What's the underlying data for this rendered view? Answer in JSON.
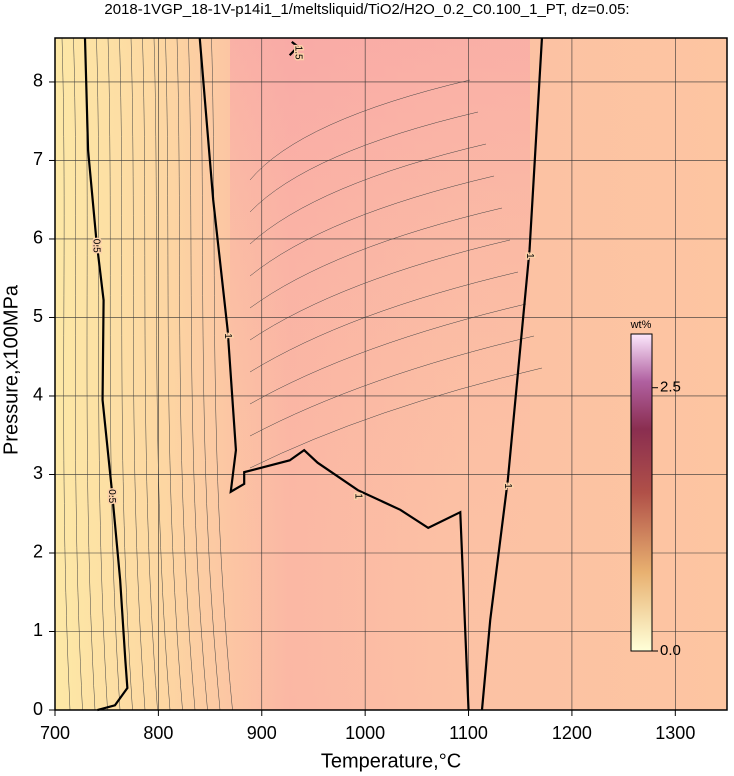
{
  "chart_data": {
    "type": "contour",
    "title": "2018-1VGP_18-1V-p14i1_1/meltsliquid/TiO2/H2O_0.2_C0.100_1_PT, dz=0.05:",
    "xlabel": "Temperature,°C",
    "ylabel": "Pressure,x100MPa",
    "xlim": [
      700,
      1350
    ],
    "ylim": [
      0,
      8.56
    ],
    "xticks": [
      700,
      800,
      900,
      1000,
      1100,
      1200,
      1300
    ],
    "yticks": [
      0,
      1,
      2,
      3,
      4,
      5,
      6,
      7,
      8
    ],
    "grid": true,
    "contours": [
      {
        "level": 0.5,
        "x": [
          729,
          732,
          740,
          747,
          746,
          755,
          763,
          768,
          770,
          758,
          741
        ],
        "y": [
          8.56,
          7.13,
          5.99,
          5.22,
          3.95,
          2.8,
          1.66,
          0.64,
          0.28,
          0.06,
          0
        ]
      },
      {
        "level": 1,
        "x": [
          840,
          853,
          867,
          875,
          870,
          883,
          883,
          927,
          941,
          954,
          993,
          1034,
          1061,
          1092,
          1100
        ],
        "y": [
          8.56,
          6.5,
          4.84,
          3.31,
          2.78,
          2.88,
          3.03,
          3.18,
          3.31,
          3.15,
          2.8,
          2.55,
          2.32,
          2.52,
          0
        ]
      },
      {
        "level": 1,
        "x": [
          1171,
          1159,
          1138,
          1121,
          1113
        ],
        "y": [
          8.56,
          5.86,
          2.93,
          1.15,
          0
        ]
      },
      {
        "level": 1.5,
        "x": [
          929,
          935,
          927
        ],
        "y": [
          8.51,
          8.45,
          8.34
        ]
      }
    ],
    "colorbar": {
      "label": "wt%",
      "lim": [
        0,
        3.01
      ],
      "ticks": [
        {
          "value": 0,
          "label": "0.0"
        },
        2.5
      ]
    }
  }
}
